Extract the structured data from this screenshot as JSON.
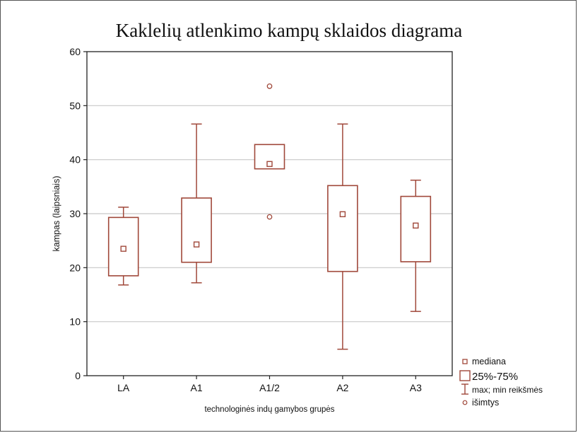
{
  "chart_data": {
    "type": "boxplot",
    "title": "Kaklelių atlenkimo kampų sklaidos diagrama",
    "xlabel": "technologinės indų gamybos grupės",
    "ylabel": "kampas (laipsniais)",
    "ylim": [
      0,
      60
    ],
    "yticks": [
      0,
      10,
      20,
      30,
      40,
      50,
      60
    ],
    "grid": "horizontal",
    "categories": [
      "LA",
      "A1",
      "A1/2",
      "A2",
      "A3"
    ],
    "boxes": [
      {
        "category": "LA",
        "median": 23.5,
        "q1": 18.5,
        "q3": 29.3,
        "min": 16.8,
        "max": 31.2,
        "outliers": []
      },
      {
        "category": "A1",
        "median": 24.3,
        "q1": 21.0,
        "q3": 32.9,
        "min": 17.2,
        "max": 46.6,
        "outliers": []
      },
      {
        "category": "A1/2",
        "median": 39.2,
        "q1": 38.3,
        "q3": 42.8,
        "min": null,
        "max": null,
        "outliers": [
          53.6,
          29.4
        ]
      },
      {
        "category": "A2",
        "median": 29.9,
        "q1": 19.3,
        "q3": 35.2,
        "min": 4.9,
        "max": 46.6,
        "outliers": []
      },
      {
        "category": "A3",
        "median": 27.8,
        "q1": 21.1,
        "q3": 33.2,
        "min": 11.9,
        "max": 36.2,
        "outliers": []
      }
    ],
    "legend": {
      "placement": "bottom-right",
      "items": [
        {
          "symbol": "median-square",
          "label": "mediana"
        },
        {
          "symbol": "box",
          "label": "25%-75%"
        },
        {
          "symbol": "whisker",
          "label": "max; min reikšmės"
        },
        {
          "symbol": "outlier-circle",
          "label": "išimtys"
        }
      ]
    },
    "colors": {
      "series": "#a0483a",
      "grid": "#c8c8c8",
      "axis": "#222222",
      "frame": "#555555"
    }
  }
}
